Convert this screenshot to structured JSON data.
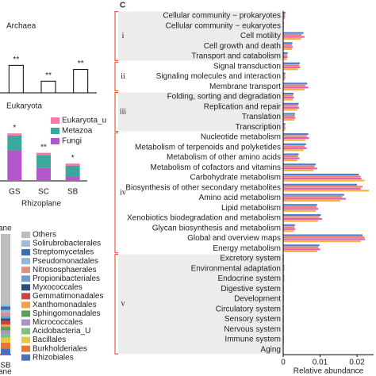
{
  "chart_data": [
    {
      "type": "bar",
      "title": "Archaea",
      "values": [
        33,
        14,
        28
      ],
      "color": "#ffffff",
      "edgecolor": "#000000",
      "ylim": [
        0,
        40
      ],
      "annotations": [
        "**",
        "**",
        "**"
      ]
    },
    {
      "type": "bar",
      "stacked": true,
      "title": "Eukaryota",
      "xlabel": "Rhizoplane",
      "categories": [
        "GS",
        "SC",
        "SB"
      ],
      "series": [
        {
          "name": "Eukaryota_u",
          "color": "#f27aa9",
          "values": [
            1,
            1,
            1
          ]
        },
        {
          "name": "Metazoa",
          "color": "#3aa89a",
          "values": [
            7,
            6,
            5
          ]
        },
        {
          "name": "Fungi",
          "color": "#b157c9",
          "values": [
            14,
            6,
            2
          ]
        }
      ],
      "ylim": [
        0,
        25
      ],
      "annotations": [
        "*",
        "**",
        "*"
      ],
      "legend": "upper right"
    },
    {
      "type": "bar",
      "stacked": true,
      "title": "ane",
      "xlabel": "ane",
      "categories": [
        "SB"
      ],
      "series": [
        {
          "name": "Others",
          "color": "#bdbdbd",
          "values": [
            58
          ]
        },
        {
          "name": "Solirubrobacterales",
          "color": "#9bbdd6",
          "values": [
            2
          ]
        },
        {
          "name": "Streptomycetales",
          "color": "#3a6fb0",
          "values": [
            3
          ]
        },
        {
          "name": "Pseudomonadales",
          "color": "#8fb8e0",
          "values": [
            2
          ]
        },
        {
          "name": "Nitrososphaerales",
          "color": "#e09080",
          "values": [
            3
          ]
        },
        {
          "name": "Propionibacteriales",
          "color": "#6b9fd0",
          "values": [
            2
          ]
        },
        {
          "name": "Myxococcales",
          "color": "#2a5080",
          "values": [
            2
          ]
        },
        {
          "name": "Gemmatimonadales",
          "color": "#d04040",
          "values": [
            3
          ]
        },
        {
          "name": "Xanthomonadales",
          "color": "#f4a040",
          "values": [
            2
          ]
        },
        {
          "name": "Sphingomonadales",
          "color": "#5aa050",
          "values": [
            3
          ]
        },
        {
          "name": "Micrococcales",
          "color": "#b090c8",
          "values": [
            3
          ]
        },
        {
          "name": "Acidobacteria_U",
          "color": "#80c080",
          "values": [
            3
          ]
        },
        {
          "name": "Bacillales",
          "color": "#e8c840",
          "values": [
            4
          ]
        },
        {
          "name": "Burkholderiales",
          "color": "#e87830",
          "values": [
            5
          ]
        },
        {
          "name": "Rhizobiales",
          "color": "#4a70c0",
          "values": [
            5
          ]
        }
      ],
      "ylim": [
        0,
        100
      ],
      "legend": "right"
    },
    {
      "type": "bar",
      "orientation": "horizontal",
      "panel": "C",
      "xlabel": "Relative abundance",
      "categories": [
        "Cellular community − prokaryotes",
        "Cellular community − eukaryotes",
        "Cell motility",
        "Cell growth and death",
        "Transport and catabolism",
        "Signal transduction",
        "Signaling molecules and interaction",
        "Membrane transport",
        "Folding, sorting and degradation",
        "Replication and repair",
        "Translation",
        "Transcription",
        "Nucleotide metabolism",
        "Metabolism of terpenoids and polyketides",
        "Metabolism of other amino acids",
        "Metabolism of cofactors and vitamins",
        "Carbohydrate metabolism",
        "Biosynthesis of other secondary metabolites",
        "Amino acid metabolism",
        "Lipid metabolism",
        "Xenobiotics biodegradation and metabolism",
        "Glycan biosynthesis and metabolism",
        "Global and overview maps",
        "Energy metabolism",
        "Excretory system",
        "Environmental adaptation",
        "Endocrine system",
        "Digestive system",
        "Development",
        "Circulatory system",
        "Sensory system",
        "Nervous system",
        "Immune system",
        "Aging"
      ],
      "groups": [
        {
          "label": "i",
          "count": 5
        },
        {
          "label": "ii",
          "count": 3
        },
        {
          "label": "iii",
          "count": 4
        },
        {
          "label": "iv",
          "count": 12
        },
        {
          "label": "v",
          "count": 10
        }
      ],
      "series": [
        {
          "color": "#4a7fd0",
          "values": [
            0.0006,
            0.0002,
            0.0055,
            0.0025,
            0.0012,
            0.0045,
            0.0006,
            0.0065,
            0.0028,
            0.0042,
            0.0032,
            0.0006,
            0.0068,
            0.0062,
            0.0042,
            0.0088,
            0.0205,
            0.02,
            0.0165,
            0.0092,
            0.0102,
            0.0032,
            0.0215,
            0.0098,
            0.0002,
            0.0003,
            0.0003,
            0.0002,
            0.0002,
            0.0002,
            0.0002,
            0.0002,
            0.0002,
            0.0001
          ]
        },
        {
          "color": "#f08070",
          "values": [
            0.0005,
            0.0002,
            0.005,
            0.0024,
            0.0011,
            0.0043,
            0.0005,
            0.006,
            0.0027,
            0.004,
            0.0031,
            0.0005,
            0.0064,
            0.0058,
            0.004,
            0.0085,
            0.021,
            0.0215,
            0.016,
            0.009,
            0.0098,
            0.003,
            0.022,
            0.0095,
            0.0002,
            0.0003,
            0.0003,
            0.0002,
            0.0002,
            0.0002,
            0.0002,
            0.0002,
            0.0002,
            0.0001
          ]
        },
        {
          "color": "#e060b0",
          "values": [
            0.0005,
            0.0002,
            0.0058,
            0.0026,
            0.0012,
            0.0046,
            0.0006,
            0.0068,
            0.0029,
            0.0043,
            0.0033,
            0.0006,
            0.007,
            0.0064,
            0.0044,
            0.0092,
            0.0212,
            0.021,
            0.017,
            0.0095,
            0.0105,
            0.0033,
            0.0222,
            0.01,
            0.0002,
            0.0003,
            0.0003,
            0.0002,
            0.0002,
            0.0002,
            0.0002,
            0.0002,
            0.0002,
            0.0001
          ]
        },
        {
          "color": "#f4b040",
          "values": [
            0.0004,
            0.0002,
            0.0048,
            0.0023,
            0.001,
            0.004,
            0.0005,
            0.0058,
            0.0026,
            0.0038,
            0.003,
            0.0005,
            0.006,
            0.0055,
            0.0038,
            0.0082,
            0.022,
            0.0232,
            0.0155,
            0.0088,
            0.0094,
            0.0029,
            0.021,
            0.0092,
            0.0002,
            0.0002,
            0.0003,
            0.0002,
            0.0002,
            0.0002,
            0.0002,
            0.0002,
            0.0002,
            0.0001
          ]
        }
      ],
      "xlim": [
        0,
        0.0245
      ],
      "xticks": [
        0,
        0.01,
        0.02
      ]
    }
  ]
}
